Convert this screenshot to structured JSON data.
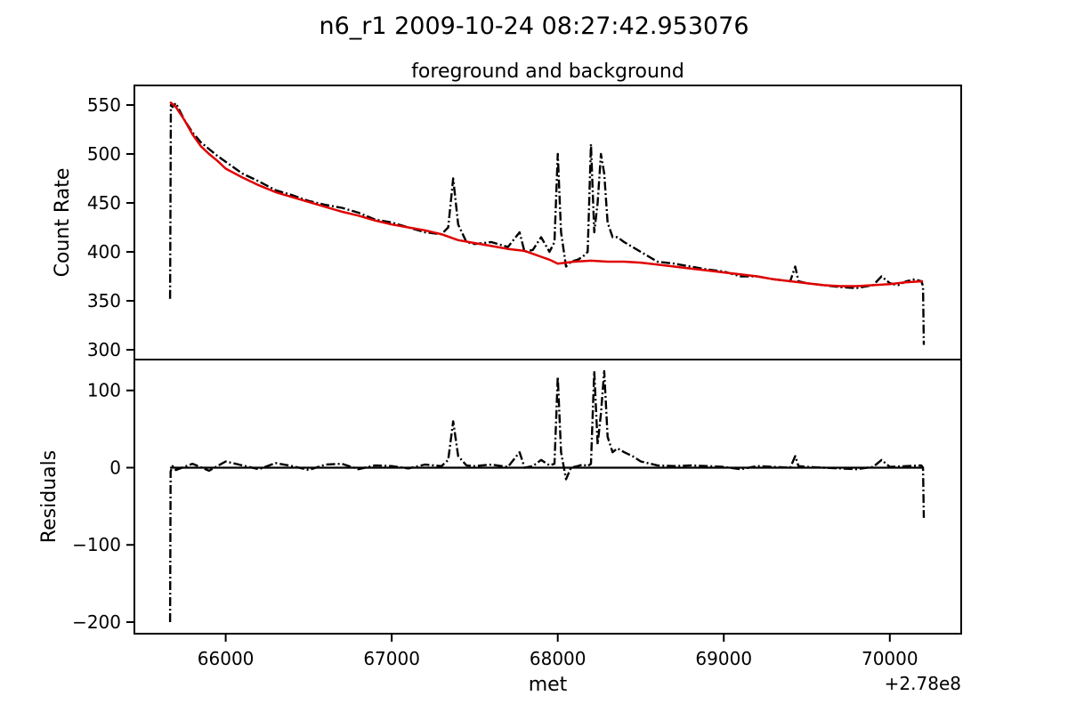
{
  "figure": {
    "suptitle": "n6_r1 2009-10-24 08:27:42.953076"
  },
  "chart_data": [
    {
      "type": "line",
      "panel": "top",
      "title": "foreground and background",
      "xlabel": "",
      "ylabel": "Count Rate",
      "xlim": [
        65450,
        70430
      ],
      "ylim": [
        290,
        570
      ],
      "yticks": [
        300,
        350,
        400,
        450,
        500,
        550
      ],
      "ytick_labels": [
        "300",
        "350",
        "400",
        "450",
        "500",
        "550"
      ],
      "series": [
        {
          "name": "",
          "color": "#000000",
          "style": "dash-dot",
          "x": [
            65665,
            65670,
            65680,
            65700,
            65750,
            65800,
            65850,
            65900,
            65950,
            66000,
            66100,
            66200,
            66300,
            66400,
            66500,
            66600,
            66700,
            66800,
            66900,
            67000,
            67100,
            67200,
            67300,
            67340,
            67370,
            67400,
            67450,
            67500,
            67600,
            67700,
            67770,
            67800,
            67850,
            67900,
            67950,
            67980,
            68000,
            68020,
            68050,
            68080,
            68120,
            68150,
            68180,
            68200,
            68220,
            68240,
            68260,
            68280,
            68300,
            68330,
            68360,
            68400,
            68450,
            68500,
            68550,
            68600,
            68700,
            68800,
            68900,
            69000,
            69100,
            69200,
            69300,
            69400,
            69430,
            69450,
            69500,
            69600,
            69700,
            69800,
            69900,
            69950,
            70000,
            70050,
            70100,
            70150,
            70190,
            70200,
            70205
          ],
          "y": [
            352,
            550,
            548,
            552,
            535,
            522,
            512,
            505,
            498,
            492,
            480,
            472,
            463,
            458,
            452,
            448,
            445,
            440,
            433,
            430,
            425,
            420,
            418,
            425,
            475,
            428,
            410,
            408,
            410,
            405,
            420,
            400,
            402,
            415,
            400,
            410,
            500,
            420,
            385,
            390,
            392,
            395,
            400,
            510,
            420,
            450,
            500,
            480,
            430,
            415,
            415,
            410,
            405,
            400,
            395,
            390,
            388,
            385,
            382,
            380,
            375,
            375,
            372,
            370,
            385,
            370,
            368,
            366,
            364,
            363,
            366,
            375,
            368,
            366,
            370,
            372,
            370,
            365,
            305
          ]
        },
        {
          "name": "",
          "color": "#e00000",
          "style": "solid",
          "x": [
            65665,
            65700,
            65750,
            65800,
            65850,
            65900,
            65950,
            66000,
            66100,
            66200,
            66300,
            66400,
            66500,
            66600,
            66700,
            66800,
            66900,
            67000,
            67100,
            67200,
            67300,
            67400,
            67500,
            67600,
            67700,
            67800,
            67850,
            67900,
            67950,
            68000,
            68050,
            68100,
            68200,
            68300,
            68400,
            68500,
            68600,
            68700,
            68800,
            68900,
            69000,
            69100,
            69200,
            69300,
            69400,
            69500,
            69600,
            69700,
            69800,
            69900,
            70000,
            70100,
            70200
          ],
          "y": [
            553,
            548,
            535,
            520,
            508,
            500,
            493,
            485,
            476,
            468,
            461,
            456,
            451,
            446,
            441,
            437,
            432,
            428,
            425,
            422,
            418,
            412,
            409,
            406,
            403,
            401,
            398,
            395,
            392,
            388,
            389,
            390,
            391,
            390,
            390,
            389,
            387,
            385,
            383,
            381,
            379,
            377,
            375,
            372,
            370,
            368,
            366,
            365,
            365,
            366,
            367,
            369,
            370
          ]
        }
      ]
    },
    {
      "type": "line",
      "panel": "bottom",
      "title": "",
      "xlabel": "met",
      "ylabel": "Residuals",
      "xlim": [
        65450,
        70430
      ],
      "ylim": [
        -215,
        140
      ],
      "xticks": [
        66000,
        67000,
        68000,
        69000,
        70000
      ],
      "xtick_labels": [
        "66000",
        "67000",
        "68000",
        "69000",
        "70000"
      ],
      "x_offset_label": "+2.78e8",
      "yticks": [
        -200,
        -100,
        0,
        100
      ],
      "ytick_labels": [
        "−200",
        "−100",
        "0",
        "100"
      ],
      "series": [
        {
          "name": "",
          "color": "#000000",
          "style": "dash-dot",
          "x": [
            65665,
            65668,
            65680,
            65700,
            65800,
            65900,
            66000,
            66100,
            66200,
            66300,
            66400,
            66500,
            66600,
            66700,
            66800,
            66900,
            67000,
            67100,
            67200,
            67300,
            67340,
            67370,
            67400,
            67450,
            67500,
            67600,
            67700,
            67770,
            67800,
            67850,
            67900,
            67950,
            67980,
            68000,
            68020,
            68050,
            68080,
            68120,
            68150,
            68180,
            68200,
            68220,
            68240,
            68260,
            68280,
            68300,
            68330,
            68360,
            68400,
            68450,
            68500,
            68600,
            68700,
            68800,
            68900,
            69000,
            69100,
            69200,
            69300,
            69400,
            69430,
            69450,
            69500,
            69600,
            69700,
            69800,
            69900,
            69950,
            70000,
            70100,
            70190,
            70200,
            70205
          ],
          "y": [
            -200,
            -5,
            2,
            -3,
            5,
            -4,
            8,
            3,
            -2,
            6,
            2,
            -3,
            4,
            5,
            -2,
            3,
            2,
            -1,
            4,
            2,
            10,
            60,
            15,
            3,
            2,
            4,
            1,
            20,
            0,
            2,
            10,
            3,
            5,
            118,
            20,
            -15,
            0,
            2,
            4,
            2,
            5,
            125,
            30,
            70,
            125,
            40,
            20,
            25,
            20,
            15,
            8,
            3,
            2,
            3,
            2,
            1,
            -2,
            2,
            1,
            0,
            15,
            2,
            1,
            0,
            -1,
            -2,
            1,
            10,
            1,
            2,
            3,
            0,
            -65
          ]
        },
        {
          "name": "",
          "color": "#000000",
          "style": "solid",
          "x": [
            65665,
            70205
          ],
          "y": [
            0,
            0
          ]
        }
      ]
    }
  ]
}
